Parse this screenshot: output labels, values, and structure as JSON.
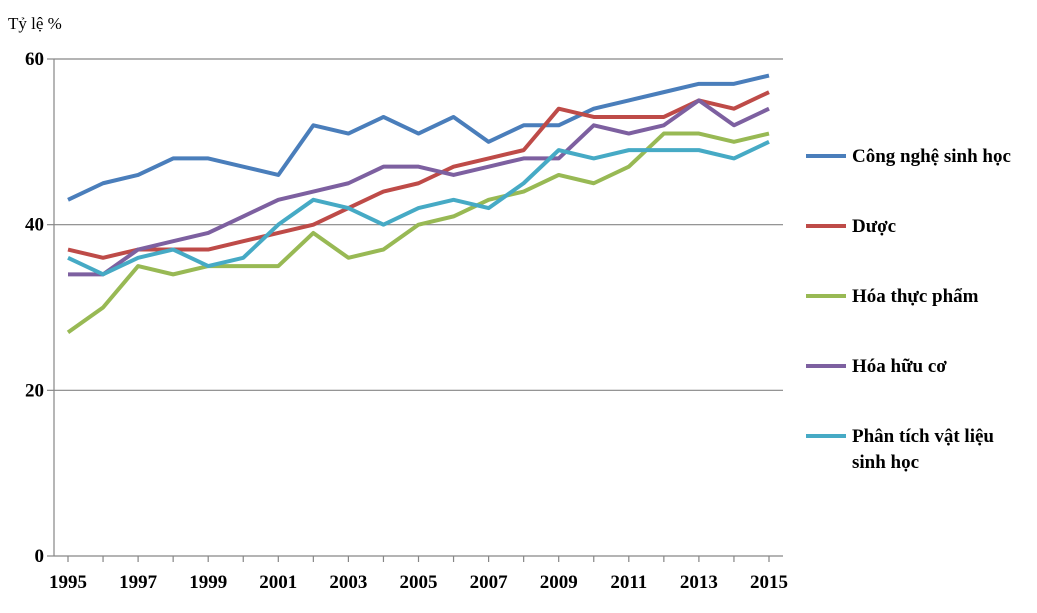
{
  "chart_data": {
    "type": "line",
    "title": "",
    "xlabel": "",
    "ylabel": "Tỷ lệ %",
    "ylim": [
      0,
      60
    ],
    "yticks": [
      0,
      20,
      40,
      60
    ],
    "x": [
      1995,
      1996,
      1997,
      1998,
      1999,
      2000,
      2001,
      2002,
      2003,
      2004,
      2005,
      2006,
      2007,
      2008,
      2009,
      2010,
      2011,
      2012,
      2013,
      2014,
      2015
    ],
    "xtick_labels": [
      "1995",
      "1997",
      "1999",
      "2001",
      "2003",
      "2005",
      "2007",
      "2009",
      "2011",
      "2013",
      "2015"
    ],
    "grid": "horizontal",
    "legend_position": "right",
    "series": [
      {
        "name": "Công nghệ sinh học",
        "color": "#4a7ebb",
        "values": [
          43,
          45,
          46,
          48,
          48,
          47,
          46,
          52,
          51,
          53,
          51,
          53,
          50,
          52,
          52,
          54,
          55,
          56,
          57,
          57,
          58
        ]
      },
      {
        "name": "Dược",
        "color": "#be4b48",
        "values": [
          37,
          36,
          37,
          37,
          37,
          38,
          39,
          40,
          42,
          44,
          45,
          47,
          48,
          49,
          54,
          53,
          53,
          53,
          55,
          54,
          56
        ]
      },
      {
        "name": "Hóa thực phẩm",
        "color": "#98b954",
        "values": [
          27,
          30,
          35,
          34,
          35,
          35,
          35,
          39,
          36,
          37,
          40,
          41,
          43,
          44,
          46,
          45,
          47,
          51,
          51,
          50,
          51
        ]
      },
      {
        "name": "Hóa hữu cơ",
        "color": "#7d60a0",
        "values": [
          34,
          34,
          37,
          38,
          39,
          41,
          43,
          44,
          45,
          47,
          47,
          46,
          47,
          48,
          48,
          52,
          51,
          52,
          55,
          52,
          54
        ]
      },
      {
        "name": "Phân tích vật liệu sinh học",
        "color": "#46aac5",
        "values": [
          36,
          34,
          36,
          37,
          35,
          36,
          40,
          43,
          42,
          40,
          42,
          43,
          42,
          45,
          49,
          48,
          49,
          49,
          49,
          48,
          50
        ]
      }
    ]
  }
}
